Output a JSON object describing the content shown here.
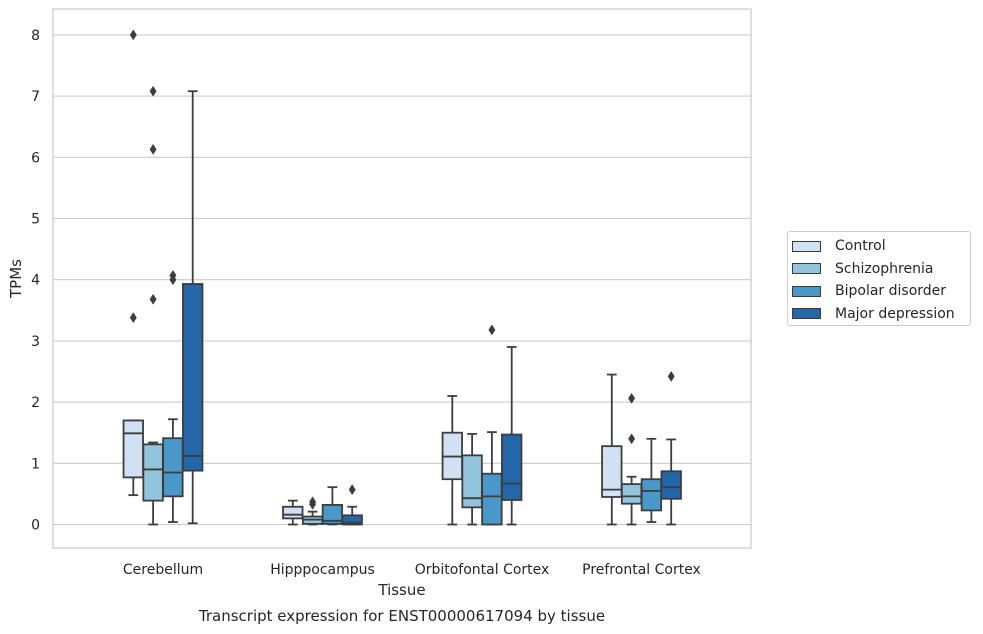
{
  "chart_data": {
    "type": "box",
    "caption": "Transcript expression for ENST00000617094 by tissue",
    "xlabel": "Tissue",
    "ylabel": "TPMs",
    "ylim": [
      -0.4,
      8.4
    ],
    "yticks": [
      0,
      1,
      2,
      3,
      4,
      5,
      6,
      7,
      8
    ],
    "grid": "horizontal",
    "legend_position": "right",
    "categories": [
      "Cerebellum",
      "Hipppocampus",
      "Orbitofontal Cortex",
      "Prefrontal Cortex"
    ],
    "series": [
      {
        "name": "Control",
        "color": "#cfe1f2",
        "boxes": [
          {
            "whislo": 0.48,
            "q1": 0.77,
            "med": 1.49,
            "q3": 1.7,
            "whishi": 1.7,
            "fliers": [
              3.38,
              8.0
            ]
          },
          {
            "whislo": 0.0,
            "q1": 0.1,
            "med": 0.16,
            "q3": 0.29,
            "whishi": 0.39,
            "fliers": []
          },
          {
            "whislo": 0.0,
            "q1": 0.74,
            "med": 1.11,
            "q3": 1.5,
            "whishi": 2.1,
            "fliers": []
          },
          {
            "whislo": 0.0,
            "q1": 0.45,
            "med": 0.57,
            "q3": 1.28,
            "whishi": 2.45,
            "fliers": []
          }
        ]
      },
      {
        "name": "Schizophrenia",
        "color": "#93c4de",
        "boxes": [
          {
            "whislo": 0.0,
            "q1": 0.39,
            "med": 0.9,
            "q3": 1.31,
            "whishi": 1.34,
            "fliers": [
              3.68,
              6.13,
              7.08
            ]
          },
          {
            "whislo": 0.0,
            "q1": 0.01,
            "med": 0.08,
            "q3": 0.13,
            "whishi": 0.21,
            "fliers": [
              0.33,
              0.37
            ]
          },
          {
            "whislo": 0.0,
            "q1": 0.28,
            "med": 0.43,
            "q3": 1.13,
            "whishi": 1.48,
            "fliers": []
          },
          {
            "whislo": 0.0,
            "q1": 0.34,
            "med": 0.46,
            "q3": 0.66,
            "whishi": 0.78,
            "fliers": [
              1.4,
              2.06
            ]
          }
        ]
      },
      {
        "name": "Bipolar disorder",
        "color": "#4a98c9",
        "boxes": [
          {
            "whislo": 0.04,
            "q1": 0.46,
            "med": 0.85,
            "q3": 1.41,
            "whishi": 1.72,
            "fliers": [
              4.0,
              4.07
            ]
          },
          {
            "whislo": 0.0,
            "q1": 0.01,
            "med": 0.06,
            "q3": 0.32,
            "whishi": 0.61,
            "fliers": []
          },
          {
            "whislo": 0.0,
            "q1": 0.0,
            "med": 0.46,
            "q3": 0.83,
            "whishi": 1.51,
            "fliers": [
              3.18
            ]
          },
          {
            "whislo": 0.04,
            "q1": 0.23,
            "med": 0.55,
            "q3": 0.74,
            "whishi": 1.4,
            "fliers": []
          }
        ]
      },
      {
        "name": "Major depression",
        "color": "#2466a8",
        "boxes": [
          {
            "whislo": 0.02,
            "q1": 0.88,
            "med": 1.12,
            "q3": 3.93,
            "whishi": 7.08,
            "fliers": []
          },
          {
            "whislo": 0.0,
            "q1": 0.0,
            "med": 0.03,
            "q3": 0.15,
            "whishi": 0.29,
            "fliers": [
              0.57
            ]
          },
          {
            "whislo": 0.0,
            "q1": 0.4,
            "med": 0.67,
            "q3": 1.47,
            "whishi": 2.9,
            "fliers": []
          },
          {
            "whislo": 0.0,
            "q1": 0.42,
            "med": 0.61,
            "q3": 0.87,
            "whishi": 1.39,
            "fliers": [
              2.42
            ]
          }
        ]
      }
    ]
  }
}
